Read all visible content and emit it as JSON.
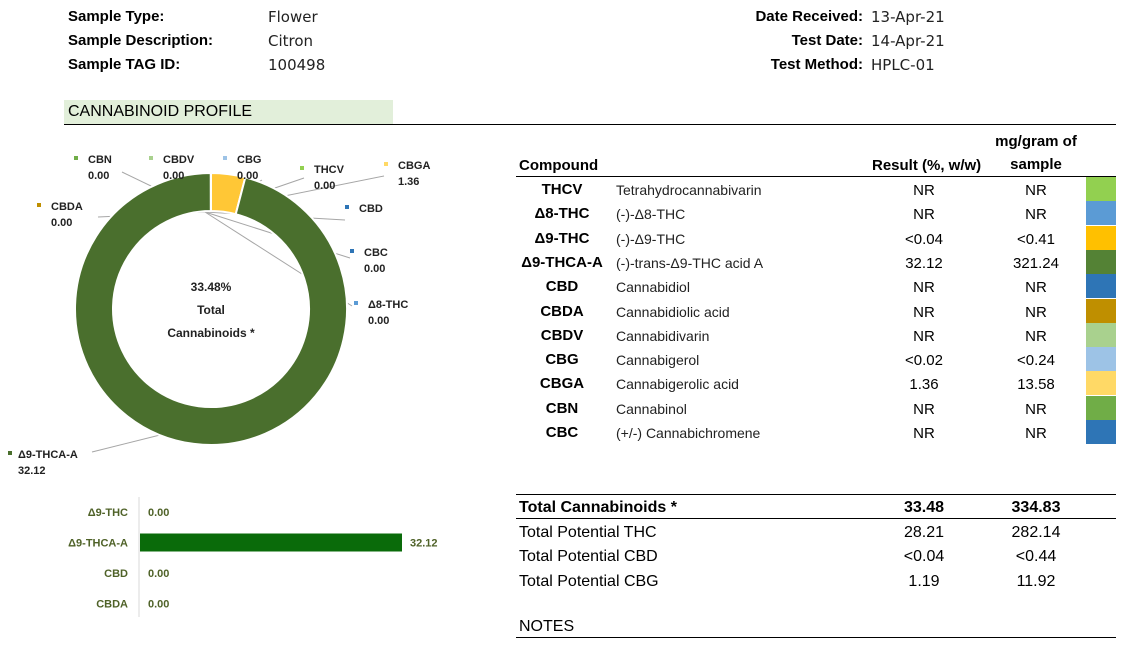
{
  "sample": {
    "type_label": "Sample Type:",
    "type_value": "Flower",
    "desc_label": "Sample Description:",
    "desc_value": "Citron",
    "tag_label": "Sample TAG ID:",
    "tag_value": "100498",
    "received_label": "Date Received:",
    "received_value": "13-Apr-21",
    "test_date_label": "Test Date:",
    "test_date_value": "14-Apr-21",
    "method_label": "Test Method:",
    "method_value": "HPLC-01"
  },
  "section_title": "CANNABINOID PROFILE",
  "donut": {
    "center_pct": "33.48%",
    "center_line1": "Total",
    "center_line2": "Cannabinoids *",
    "labels": [
      {
        "name": "CBN",
        "value": "0.00",
        "color": "#70ad47"
      },
      {
        "name": "CBDV",
        "value": "0.00",
        "color": "#a9d18e"
      },
      {
        "name": "CBG",
        "value": "0.00",
        "color": "#9dc3e6"
      },
      {
        "name": "THCV",
        "value": "0.00",
        "color": "#92d050"
      },
      {
        "name": "CBGA",
        "value": "1.36",
        "color": "#ffd966"
      },
      {
        "name": "CBDA",
        "value": "0.00",
        "color": "#bf8f00"
      },
      {
        "name": "CBD",
        "value": "",
        "color": "#2e75b6"
      },
      {
        "name": "CBC",
        "value": "0.00",
        "color": "#2e75b6"
      },
      {
        "name": "Δ8-THC",
        "value": "0.00",
        "color": "#5b9bd5"
      },
      {
        "name": "Δ9-THCA-A",
        "value": "32.12",
        "color": "#4a6f2d"
      }
    ]
  },
  "chart_data": [
    {
      "type": "pie",
      "title": "",
      "categories": [
        "Δ9-THCA-A",
        "CBGA",
        "CBN",
        "CBDV",
        "CBG",
        "THCV",
        "CBDA",
        "CBD",
        "CBC",
        "Δ8-THC"
      ],
      "values": [
        32.12,
        1.36,
        0.0,
        0.0,
        0.0,
        0.0,
        0.0,
        0.0,
        0.0,
        0.0
      ],
      "colors": [
        "#4a6f2d",
        "#ffc736",
        "#70ad47",
        "#a9d18e",
        "#9dc3e6",
        "#92d050",
        "#bf8f00",
        "#2e75b6",
        "#2e75b6",
        "#5b9bd5"
      ]
    },
    {
      "type": "bar",
      "orientation": "horizontal",
      "title": "",
      "categories": [
        "Δ9-THC",
        "Δ9-THCA-A",
        "CBD",
        "CBDA"
      ],
      "values": [
        0.0,
        32.12,
        0.0,
        0.0
      ],
      "value_labels": [
        "0.00",
        "32.12",
        "0.00",
        "0.00"
      ],
      "color": "#0a6b0a"
    }
  ],
  "table": {
    "headers": {
      "compound": "Compound",
      "result": "Result (%, w/w)",
      "mg_line1": "mg/gram of",
      "mg_line2": "sample"
    },
    "rows": [
      {
        "abbr": "THCV",
        "name": "Tetrahydrocannabivarin",
        "result": "NR",
        "mg": "NR",
        "color": "#92d050"
      },
      {
        "abbr": "Δ8-THC",
        "name": "(-)-Δ8-THC",
        "result": "NR",
        "mg": "NR",
        "color": "#5b9bd5"
      },
      {
        "abbr": "Δ9-THC",
        "name": "(-)-Δ9-THC",
        "result": "<0.04",
        "mg": "<0.41",
        "color": "#ffc000"
      },
      {
        "abbr": "Δ9-THCA-A",
        "name": "(-)-trans-Δ9-THC acid A",
        "result": "32.12",
        "mg": "321.24",
        "color": "#548235"
      },
      {
        "abbr": "CBD",
        "name": "Cannabidiol",
        "result": "NR",
        "mg": "NR",
        "color": "#2e75b6"
      },
      {
        "abbr": "CBDA",
        "name": "Cannabidiolic acid",
        "result": "NR",
        "mg": "NR",
        "color": "#bf8f00"
      },
      {
        "abbr": "CBDV",
        "name": "Cannabidivarin",
        "result": "NR",
        "mg": "NR",
        "color": "#a9d18e"
      },
      {
        "abbr": "CBG",
        "name": "Cannabigerol",
        "result": "<0.02",
        "mg": "<0.24",
        "color": "#9dc3e6"
      },
      {
        "abbr": "CBGA",
        "name": "Cannabigerolic acid",
        "result": "1.36",
        "mg": "13.58",
        "color": "#ffd966"
      },
      {
        "abbr": "CBN",
        "name": "Cannabinol",
        "result": "NR",
        "mg": "NR",
        "color": "#70ad47"
      },
      {
        "abbr": "CBC",
        "name": "(+/-) Cannabichromene",
        "result": "NR",
        "mg": "NR",
        "color": "#2e75b6"
      }
    ],
    "totals": [
      {
        "label": "Total Cannabinoids *",
        "result": "33.48",
        "mg": "334.83",
        "bold": true
      },
      {
        "label": "Total Potential THC",
        "result": "28.21",
        "mg": "282.14",
        "bold": false
      },
      {
        "label": "Total Potential CBD",
        "result": "<0.04",
        "mg": "<0.44",
        "bold": false
      },
      {
        "label": "Total Potential CBG",
        "result": "1.19",
        "mg": "11.92",
        "bold": false
      }
    ]
  },
  "notes_label": "NOTES"
}
